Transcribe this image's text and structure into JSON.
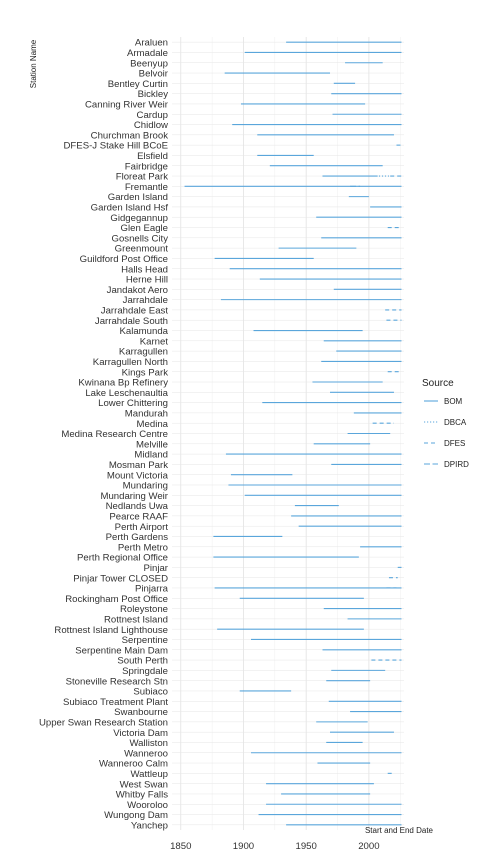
{
  "chart_data": {
    "type": "line",
    "xlabel": "Start and End Date",
    "ylabel": "Station Name",
    "xlim": [
      1843,
      2028
    ],
    "x_ticks": [
      1850,
      1900,
      1950,
      2000
    ],
    "grid": true,
    "legend": {
      "title": "Source",
      "placement": "right",
      "entries": [
        {
          "name": "BOM",
          "dash": "solid"
        },
        {
          "name": "DBCA",
          "dash": "dotted"
        },
        {
          "name": "DFES",
          "dash": "dashed"
        },
        {
          "name": "DPIRD",
          "dash": "longdash"
        }
      ]
    },
    "colors": {
      "line": "#5aa6db",
      "grid": "#e4e4e4",
      "text": "#333333"
    },
    "categories": [
      "Araluen",
      "Armadale",
      "Beenyup",
      "Belvoir",
      "Bentley Curtin",
      "Bickley",
      "Canning River Weir",
      "Cardup",
      "Chidlow",
      "Churchman Brook",
      "DFES-J Stake Hill BCoE",
      "Elsfield",
      "Fairbridge",
      "Floreat Park",
      "Fremantle",
      "Garden Island",
      "Garden Island Hsf",
      "Gidgegannup",
      "Glen Eagle",
      "Gosnells City",
      "Greenmount",
      "Guildford Post Office",
      "Halls Head",
      "Herne Hill",
      "Jandakot Aero",
      "Jarrahdale",
      "Jarrahdale East",
      "Jarrahdale South",
      "Kalamunda",
      "Karnet",
      "Karragullen",
      "Karragullen North",
      "Kings Park",
      "Kwinana Bp Refinery",
      "Lake Leschenaultia",
      "Lower Chittering",
      "Mandurah",
      "Medina",
      "Medina Research Centre",
      "Melville",
      "Midland",
      "Mosman Park",
      "Mount Victoria",
      "Mundaring",
      "Mundaring Weir",
      "Nedlands Uwa",
      "Pearce RAAF",
      "Perth Airport",
      "Perth Gardens",
      "Perth Metro",
      "Perth Regional Office",
      "Pinjar",
      "Pinjar Tower CLOSED",
      "Pinjarra",
      "Rockingham Post Office",
      "Roleystone",
      "Rottnest Island",
      "Rottnest Island Lighthouse",
      "Serpentine",
      "Serpentine Main Dam",
      "South Perth",
      "Springdale",
      "Stoneville Research Stn",
      "Subiaco",
      "Subiaco Treatment Plant",
      "Swanbourne",
      "Upper Swan Research Station",
      "Victoria Dam",
      "Walliston",
      "Wanneroo",
      "Wanneroo Calm",
      "Wattleup",
      "West Swan",
      "Whitby Falls",
      "Wooroloo",
      "Wungong Dam",
      "Yanchep"
    ],
    "segments": [
      {
        "station": "Araluen",
        "source": "BOM",
        "start": 1934,
        "end": 2026
      },
      {
        "station": "Armadale",
        "source": "BOM",
        "start": 1901,
        "end": 2026
      },
      {
        "station": "Beenyup",
        "source": "BOM",
        "start": 1981,
        "end": 2011
      },
      {
        "station": "Belvoir",
        "source": "BOM",
        "start": 1885,
        "end": 1969
      },
      {
        "station": "Bentley Curtin",
        "source": "BOM",
        "start": 1972,
        "end": 1989
      },
      {
        "station": "Bickley",
        "source": "BOM",
        "start": 1970,
        "end": 2026
      },
      {
        "station": "Canning River Weir",
        "source": "BOM",
        "start": 1898,
        "end": 1997
      },
      {
        "station": "Cardup",
        "source": "BOM",
        "start": 1971,
        "end": 2026
      },
      {
        "station": "Chidlow",
        "source": "BOM",
        "start": 1891,
        "end": 2026
      },
      {
        "station": "Churchman Brook",
        "source": "BOM",
        "start": 1911,
        "end": 2020
      },
      {
        "station": "DFES-J Stake Hill BCoE",
        "source": "DFES",
        "start": 2022,
        "end": 2026
      },
      {
        "station": "Elsfield",
        "source": "BOM",
        "start": 1911,
        "end": 1956
      },
      {
        "station": "Fairbridge",
        "source": "BOM",
        "start": 1921,
        "end": 2011
      },
      {
        "station": "Floreat Park",
        "source": "BOM",
        "start": 1963,
        "end": 2007
      },
      {
        "station": "Floreat Park",
        "source": "DBCA",
        "start": 2008,
        "end": 2016
      },
      {
        "station": "Floreat Park",
        "source": "DFES",
        "start": 2017,
        "end": 2026
      },
      {
        "station": "Fremantle",
        "source": "BOM",
        "start": 1853,
        "end": 2026
      },
      {
        "station": "Fremantle",
        "source": "DPIRD",
        "start": 1985,
        "end": 1993
      },
      {
        "station": "Garden Island",
        "source": "BOM",
        "start": 1984,
        "end": 2000
      },
      {
        "station": "Garden Island Hsf",
        "source": "BOM",
        "start": 2001,
        "end": 2026
      },
      {
        "station": "Gidgegannup",
        "source": "BOM",
        "start": 1958,
        "end": 2026
      },
      {
        "station": "Glen Eagle",
        "source": "DFES",
        "start": 2015,
        "end": 2026
      },
      {
        "station": "Gosnells City",
        "source": "BOM",
        "start": 1962,
        "end": 2026
      },
      {
        "station": "Greenmount",
        "source": "BOM",
        "start": 1928,
        "end": 1990
      },
      {
        "station": "Guildford Post Office",
        "source": "BOM",
        "start": 1877,
        "end": 1956
      },
      {
        "station": "Halls Head",
        "source": "BOM",
        "start": 1889,
        "end": 2026
      },
      {
        "station": "Herne Hill",
        "source": "BOM",
        "start": 1913,
        "end": 2026
      },
      {
        "station": "Jandakot Aero",
        "source": "BOM",
        "start": 1972,
        "end": 2026
      },
      {
        "station": "Jarrahdale",
        "source": "BOM",
        "start": 1882,
        "end": 2026
      },
      {
        "station": "Jarrahdale East",
        "source": "DFES",
        "start": 2013,
        "end": 2026
      },
      {
        "station": "Jarrahdale South",
        "source": "DFES",
        "start": 2014,
        "end": 2026
      },
      {
        "station": "Kalamunda",
        "source": "BOM",
        "start": 1908,
        "end": 1995
      },
      {
        "station": "Karnet",
        "source": "BOM",
        "start": 1964,
        "end": 2026
      },
      {
        "station": "Karragullen",
        "source": "BOM",
        "start": 1974,
        "end": 2026
      },
      {
        "station": "Karragullen North",
        "source": "BOM",
        "start": 1962,
        "end": 2026
      },
      {
        "station": "Kings Park",
        "source": "DFES",
        "start": 2015,
        "end": 2026
      },
      {
        "station": "Kwinana Bp Refinery",
        "source": "BOM",
        "start": 1955,
        "end": 2011
      },
      {
        "station": "Lake Leschenaultia",
        "source": "BOM",
        "start": 1969,
        "end": 2020
      },
      {
        "station": "Lower Chittering",
        "source": "BOM",
        "start": 1915,
        "end": 2026
      },
      {
        "station": "Mandurah",
        "source": "BOM",
        "start": 1988,
        "end": 2026
      },
      {
        "station": "Medina",
        "source": "DFES",
        "start": 2003,
        "end": 2020
      },
      {
        "station": "Medina Research Centre",
        "source": "BOM",
        "start": 1983,
        "end": 2017
      },
      {
        "station": "Melville",
        "source": "BOM",
        "start": 1956,
        "end": 2001
      },
      {
        "station": "Midland",
        "source": "BOM",
        "start": 1886,
        "end": 2026
      },
      {
        "station": "Mosman Park",
        "source": "BOM",
        "start": 1970,
        "end": 2026
      },
      {
        "station": "Mount Victoria",
        "source": "BOM",
        "start": 1890,
        "end": 1939
      },
      {
        "station": "Mundaring",
        "source": "BOM",
        "start": 1888,
        "end": 2026
      },
      {
        "station": "Mundaring Weir",
        "source": "BOM",
        "start": 1901,
        "end": 2026
      },
      {
        "station": "Nedlands Uwa",
        "source": "BOM",
        "start": 1941,
        "end": 1976
      },
      {
        "station": "Pearce RAAF",
        "source": "BOM",
        "start": 1938,
        "end": 2026
      },
      {
        "station": "Perth Airport",
        "source": "BOM",
        "start": 1944,
        "end": 2026
      },
      {
        "station": "Perth Gardens",
        "source": "BOM",
        "start": 1876,
        "end": 1931
      },
      {
        "station": "Perth Metro",
        "source": "BOM",
        "start": 1993,
        "end": 2026
      },
      {
        "station": "Perth Regional Office",
        "source": "BOM",
        "start": 1876,
        "end": 1992
      },
      {
        "station": "Pinjar",
        "source": "BOM",
        "start": 2023,
        "end": 2026
      },
      {
        "station": "Pinjar Tower CLOSED",
        "source": "DFES",
        "start": 2016,
        "end": 2023
      },
      {
        "station": "Pinjarra",
        "source": "BOM",
        "start": 1877,
        "end": 2026
      },
      {
        "station": "Pinjarra",
        "source": "DFES",
        "start": 2014,
        "end": 2022
      },
      {
        "station": "Rockingham Post Office",
        "source": "BOM",
        "start": 1897,
        "end": 1996
      },
      {
        "station": "Roleystone",
        "source": "BOM",
        "start": 1964,
        "end": 2026
      },
      {
        "station": "Rottnest Island",
        "source": "BOM",
        "start": 1983,
        "end": 2026
      },
      {
        "station": "Rottnest Island Lighthouse",
        "source": "BOM",
        "start": 1879,
        "end": 1996
      },
      {
        "station": "Serpentine",
        "source": "BOM",
        "start": 1906,
        "end": 2026
      },
      {
        "station": "Serpentine Main Dam",
        "source": "BOM",
        "start": 1963,
        "end": 2026
      },
      {
        "station": "South Perth",
        "source": "DFES",
        "start": 2002,
        "end": 2026
      },
      {
        "station": "Springdale",
        "source": "BOM",
        "start": 1970,
        "end": 2013
      },
      {
        "station": "Stoneville Research Stn",
        "source": "BOM",
        "start": 1966,
        "end": 2001
      },
      {
        "station": "Subiaco",
        "source": "BOM",
        "start": 1897,
        "end": 1938
      },
      {
        "station": "Subiaco Treatment Plant",
        "source": "BOM",
        "start": 1968,
        "end": 2026
      },
      {
        "station": "Swanbourne",
        "source": "BOM",
        "start": 1985,
        "end": 2026
      },
      {
        "station": "Upper Swan Research Station",
        "source": "BOM",
        "start": 1958,
        "end": 1999
      },
      {
        "station": "Victoria Dam",
        "source": "BOM",
        "start": 1969,
        "end": 2020
      },
      {
        "station": "Walliston",
        "source": "BOM",
        "start": 1966,
        "end": 1995
      },
      {
        "station": "Wanneroo",
        "source": "BOM",
        "start": 1906,
        "end": 2026
      },
      {
        "station": "Wanneroo Calm",
        "source": "BOM",
        "start": 1959,
        "end": 2001
      },
      {
        "station": "Wattleup",
        "source": "DFES",
        "start": 2015,
        "end": 2020
      },
      {
        "station": "West Swan",
        "source": "BOM",
        "start": 1918,
        "end": 2004
      },
      {
        "station": "Whitby Falls",
        "source": "BOM",
        "start": 1930,
        "end": 2001
      },
      {
        "station": "Wooroloo",
        "source": "BOM",
        "start": 1918,
        "end": 2026
      },
      {
        "station": "Wungong Dam",
        "source": "BOM",
        "start": 1912,
        "end": 2026
      },
      {
        "station": "Yanchep",
        "source": "BOM",
        "start": 1934,
        "end": 2026
      }
    ]
  }
}
